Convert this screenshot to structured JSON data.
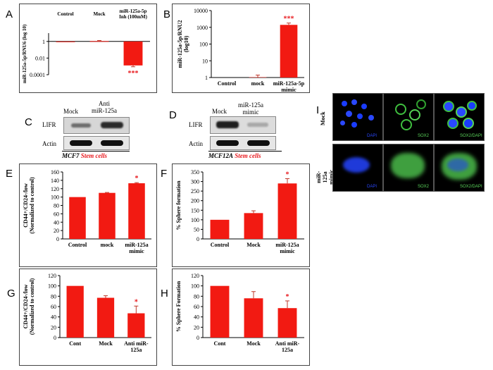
{
  "panel_labels": {
    "A": "A",
    "B": "B",
    "C": "C",
    "D": "D",
    "E": "E",
    "F": "F",
    "G": "G",
    "H": "H",
    "I": "I"
  },
  "blot_c": {
    "lanes": [
      "Mock",
      "Anti\nmiR-125a"
    ],
    "rows": [
      "LIFR",
      "Actin"
    ],
    "caption_cell": "MCF7",
    "caption_stem": "Stem cells"
  },
  "blot_d": {
    "lanes": [
      "Mock",
      "miR-125a\nmimic"
    ],
    "rows": [
      "LIFR",
      "Actin"
    ],
    "caption_cell": "MCF12A",
    "caption_stem": "Stem cells"
  },
  "micro": {
    "row_labels": [
      "Mock",
      "miR-125a\nmimic"
    ],
    "tiles": [
      [
        "DAPI",
        "SOX2",
        "SOX2/DAPI"
      ],
      [
        "DAPI",
        "SOX2",
        "SOX2/DAPI"
      ]
    ]
  },
  "colors": {
    "bar": "#f21a12",
    "star": "#e8161b",
    "error": "#c0392b"
  },
  "chart_data": [
    {
      "panel": "A",
      "type": "bar",
      "scale": "log",
      "categories": [
        "Control",
        "Mock",
        "miR-125a-5p\nInh (100mM)"
      ],
      "values": [
        1,
        1.1,
        0.0013
      ],
      "errors": [
        0,
        0.2,
        0.0004
      ],
      "ylabel": "miR-125a-5p/RNU6 (log 10)",
      "yticks": [
        1,
        0.01,
        0.0001
      ],
      "tick_labels": [
        "1",
        "0.01",
        "0.0001"
      ],
      "ylim": [
        0.0001,
        10
      ],
      "significance": [
        "",
        "",
        "***"
      ],
      "category_position": "top"
    },
    {
      "panel": "B",
      "type": "bar",
      "scale": "log",
      "categories": [
        "Control",
        "mock",
        "miR-125a-5p\nmimic"
      ],
      "values": [
        1,
        1.05,
        1400
      ],
      "errors": [
        0,
        0.35,
        400
      ],
      "ylabel": "miR-125a-5p/RNU2\n(log10)",
      "yticks": [
        1,
        10,
        100,
        1000,
        10000
      ],
      "tick_labels": [
        "1",
        "10",
        "100",
        "1000",
        "10000"
      ],
      "ylim": [
        1,
        10000
      ],
      "significance": [
        "",
        "",
        "***"
      ]
    },
    {
      "panel": "E",
      "type": "bar",
      "categories": [
        "Control",
        "mock",
        "miR-125a\nmimic"
      ],
      "values": [
        100,
        110,
        133
      ],
      "errors": [
        0,
        1,
        1.5
      ],
      "ylabel": "CD44+/CD24-/low\n(Normalized to control)",
      "yticks": [
        0,
        20,
        40,
        60,
        80,
        100,
        120,
        140,
        160
      ],
      "ylim": [
        0,
        160
      ],
      "significance": [
        "",
        "",
        "*"
      ]
    },
    {
      "panel": "F",
      "type": "bar",
      "categories": [
        "Control",
        "Mock",
        "miR-125a\nmimic"
      ],
      "values": [
        100,
        135,
        290
      ],
      "errors": [
        0,
        12,
        25
      ],
      "ylabel": "% Sphere formation",
      "yticks": [
        0,
        50,
        100,
        150,
        200,
        250,
        300,
        350
      ],
      "ylim": [
        0,
        350
      ],
      "significance": [
        "",
        "",
        "*"
      ]
    },
    {
      "panel": "G",
      "type": "bar",
      "categories": [
        "Cont",
        "Mock",
        "Anti miR-\n125a"
      ],
      "values": [
        100,
        77,
        47
      ],
      "errors": [
        0,
        4,
        14
      ],
      "ylabel": "CD44+/CD24-/low\n(Normalized to control)",
      "yticks": [
        0,
        20,
        40,
        60,
        80,
        100,
        120
      ],
      "ylim": [
        0,
        120
      ],
      "significance": [
        "",
        "",
        "*"
      ]
    },
    {
      "panel": "H",
      "type": "bar",
      "categories": [
        "Cont",
        "Mock",
        "Anti miR-\n125a"
      ],
      "values": [
        100,
        76,
        57
      ],
      "errors": [
        0,
        13,
        14
      ],
      "ylabel": "% Sphere Formation",
      "yticks": [
        0,
        20,
        40,
        60,
        80,
        100,
        120
      ],
      "ylim": [
        0,
        120
      ],
      "significance": [
        "",
        "",
        "*"
      ]
    }
  ]
}
